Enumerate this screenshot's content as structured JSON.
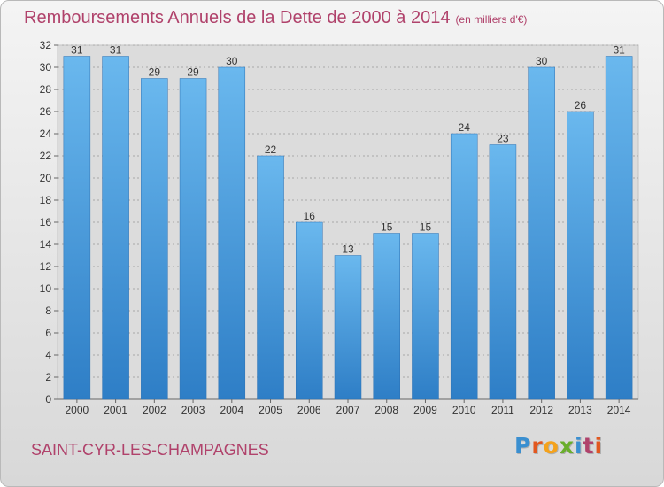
{
  "title": "Remboursements Annuels de la Dette de 2000 à 2014",
  "subtitle": "(en milliers d'€)",
  "commune": "SAINT-CYR-LES-CHAMPAGNES",
  "logo": {
    "text": "Proxiti",
    "colors": [
      "#3a8fd0",
      "#e2571f",
      "#f4a21c",
      "#6aae2c",
      "#3a8fd0",
      "#b0426b",
      "#e2571f"
    ]
  },
  "colors": {
    "title": "#b0426b",
    "bar_top": "#6ab8ee",
    "bar_bottom": "#2e7ec6",
    "label": "#333333"
  },
  "chart_data": {
    "type": "bar",
    "categories": [
      "2000",
      "2001",
      "2002",
      "2003",
      "2004",
      "2005",
      "2006",
      "2007",
      "2008",
      "2009",
      "2010",
      "2011",
      "2012",
      "2013",
      "2014"
    ],
    "values": [
      31,
      31,
      29,
      29,
      30,
      22,
      16,
      13,
      15,
      15,
      24,
      23,
      30,
      26,
      31
    ],
    "ylim": [
      0,
      32
    ],
    "yticks": [
      0,
      2,
      4,
      6,
      8,
      10,
      12,
      14,
      16,
      18,
      20,
      22,
      24,
      26,
      28,
      30,
      32
    ],
    "grid": true,
    "data_labels": true
  }
}
